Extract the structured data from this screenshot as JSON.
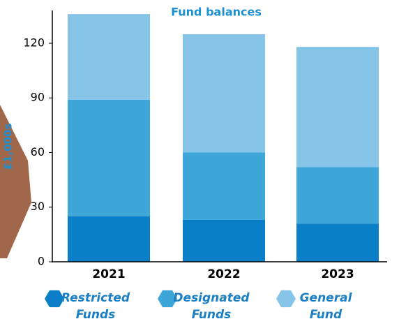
{
  "chart_data": {
    "type": "stacked_bar",
    "title": "Fund balances",
    "y_label": "£1,000s",
    "categories": [
      "2021",
      "2022",
      "2023"
    ],
    "series": [
      {
        "name": "Restricted Funds",
        "color": "#0a7fc8",
        "values": [
          25,
          23,
          21
        ]
      },
      {
        "name": "Designated Funds",
        "color": "#3fa6d9",
        "values": [
          64,
          37,
          31
        ]
      },
      {
        "name": "General Fund",
        "color": "#86c4e8",
        "values": [
          47,
          65,
          66
        ]
      }
    ],
    "ylim": [
      0,
      138
    ],
    "yticks": [
      0,
      30,
      60,
      90,
      120
    ]
  }
}
